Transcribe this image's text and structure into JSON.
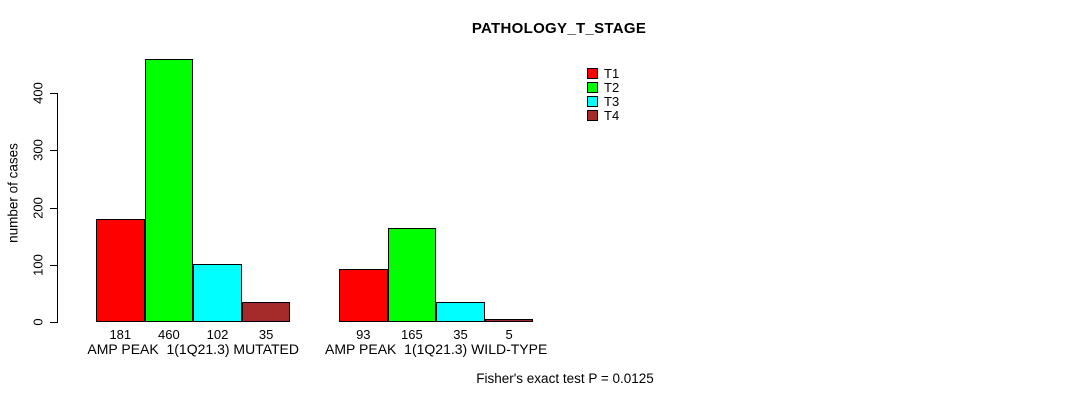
{
  "chart_data": {
    "type": "bar",
    "title": "PATHOLOGY_T_STAGE",
    "ylabel": "number of cases",
    "xlabel": "",
    "annotation": "Fisher's exact test P = 0.0125",
    "categories": [
      "AMP PEAK  1(1Q21.3) MUTATED",
      "AMP PEAK  1(1Q21.3) WILD-TYPE"
    ],
    "series": [
      {
        "name": "T1",
        "color": "#FF0000",
        "values": [
          181,
          93
        ]
      },
      {
        "name": "T2",
        "color": "#00FF00",
        "values": [
          460,
          165
        ]
      },
      {
        "name": "T3",
        "color": "#00FFFF",
        "values": [
          102,
          35
        ]
      },
      {
        "name": "T4",
        "color": "#A52A2A",
        "values": [
          35,
          5
        ]
      }
    ],
    "yticks": [
      0,
      100,
      200,
      300,
      400
    ],
    "ylim": [
      0,
      460
    ],
    "legend_position": "top-right",
    "legend_entries": [
      "T1",
      "T2",
      "T3",
      "T4"
    ],
    "grid": false,
    "bar_value_labels_shown": true,
    "axis_color": "#000000",
    "background_color": "#FFFFFF"
  }
}
